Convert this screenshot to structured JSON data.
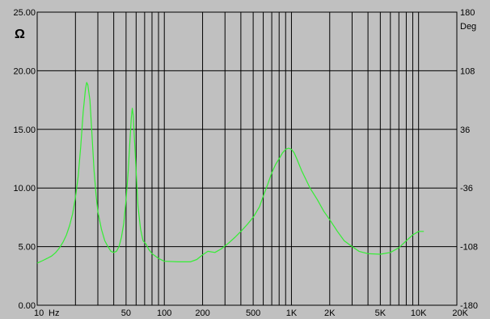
{
  "chart_data": {
    "type": "line",
    "title": "",
    "x_axis": {
      "scale": "log",
      "range": [
        10,
        20000
      ],
      "unit_label": "Hz",
      "tick_labels": [
        {
          "value": 10,
          "label": "10"
        },
        {
          "value": 50,
          "label": "50"
        },
        {
          "value": 100,
          "label": "100"
        },
        {
          "value": 200,
          "label": "200"
        },
        {
          "value": 500,
          "label": "500"
        },
        {
          "value": 1000,
          "label": "1K"
        },
        {
          "value": 2000,
          "label": "2K"
        },
        {
          "value": 5000,
          "label": "5K"
        },
        {
          "value": 10000,
          "label": "10K"
        },
        {
          "value": 20000,
          "label": "20K"
        }
      ]
    },
    "y_left_axis": {
      "unit_label": "Ω",
      "range": [
        0,
        25
      ],
      "tick_labels": [
        {
          "value": 0,
          "label": "0.00"
        },
        {
          "value": 5,
          "label": "5.00"
        },
        {
          "value": 10,
          "label": "10.00"
        },
        {
          "value": 15,
          "label": "15.00"
        },
        {
          "value": 20,
          "label": "20.00"
        },
        {
          "value": 25,
          "label": "25.00"
        }
      ]
    },
    "y_right_axis": {
      "unit_label": "Deg",
      "range": [
        -180,
        180
      ],
      "tick_labels": [
        {
          "value": 180,
          "label": "180"
        },
        {
          "value": 108,
          "label": "108"
        },
        {
          "value": 36,
          "label": "36"
        },
        {
          "value": -36,
          "label": "-36"
        },
        {
          "value": -108,
          "label": "-108"
        },
        {
          "value": -180,
          "label": "-180"
        }
      ]
    },
    "grid": true,
    "series": [
      {
        "color": "#33ee33",
        "axis": "left",
        "points": [
          [
            10,
            3.6
          ],
          [
            11,
            3.8
          ],
          [
            12,
            4.0
          ],
          [
            13,
            4.2
          ],
          [
            14,
            4.5
          ],
          [
            15,
            4.9
          ],
          [
            16,
            5.4
          ],
          [
            17,
            6.0
          ],
          [
            18,
            6.8
          ],
          [
            19,
            7.8
          ],
          [
            20,
            9.2
          ],
          [
            21,
            11.0
          ],
          [
            22,
            13.5
          ],
          [
            23,
            16.5
          ],
          [
            24,
            18.5
          ],
          [
            24.5,
            19.0
          ],
          [
            25,
            18.8
          ],
          [
            26,
            17.5
          ],
          [
            27,
            14.5
          ],
          [
            28,
            11.5
          ],
          [
            29,
            9.5
          ],
          [
            30,
            8.0
          ],
          [
            32,
            6.5
          ],
          [
            34,
            5.5
          ],
          [
            36,
            5.0
          ],
          [
            38,
            4.6
          ],
          [
            40,
            4.5
          ],
          [
            42,
            4.6
          ],
          [
            44,
            5.0
          ],
          [
            46,
            5.8
          ],
          [
            48,
            7.0
          ],
          [
            50,
            9.0
          ],
          [
            52,
            11.5
          ],
          [
            54,
            14.5
          ],
          [
            55,
            16.0
          ],
          [
            56,
            16.8
          ],
          [
            57,
            16.2
          ],
          [
            58,
            14.5
          ],
          [
            60,
            11.5
          ],
          [
            62,
            8.5
          ],
          [
            65,
            6.5
          ],
          [
            68,
            5.5
          ],
          [
            72,
            5.2
          ],
          [
            75,
            4.8
          ],
          [
            80,
            4.4
          ],
          [
            90,
            4.0
          ],
          [
            100,
            3.75
          ],
          [
            130,
            3.7
          ],
          [
            160,
            3.7
          ],
          [
            180,
            3.9
          ],
          [
            200,
            4.3
          ],
          [
            220,
            4.6
          ],
          [
            250,
            4.5
          ],
          [
            280,
            4.8
          ],
          [
            320,
            5.3
          ],
          [
            360,
            5.8
          ],
          [
            400,
            6.3
          ],
          [
            450,
            6.9
          ],
          [
            500,
            7.5
          ],
          [
            560,
            8.4
          ],
          [
            600,
            9.3
          ],
          [
            650,
            10.3
          ],
          [
            700,
            11.3
          ],
          [
            750,
            12.0
          ],
          [
            800,
            12.5
          ],
          [
            850,
            13.0
          ],
          [
            900,
            13.3
          ],
          [
            950,
            13.4
          ],
          [
            1000,
            13.3
          ],
          [
            1050,
            13.0
          ],
          [
            1100,
            12.5
          ],
          [
            1200,
            11.5
          ],
          [
            1400,
            10.0
          ],
          [
            1600,
            9.0
          ],
          [
            1800,
            8.0
          ],
          [
            2000,
            7.3
          ],
          [
            2300,
            6.3
          ],
          [
            2600,
            5.5
          ],
          [
            3000,
            5.0
          ],
          [
            3400,
            4.6
          ],
          [
            4000,
            4.4
          ],
          [
            5000,
            4.35
          ],
          [
            6000,
            4.5
          ],
          [
            7000,
            4.9
          ],
          [
            8000,
            5.5
          ],
          [
            9000,
            6.0
          ],
          [
            10000,
            6.3
          ],
          [
            11000,
            6.3
          ]
        ]
      }
    ]
  }
}
